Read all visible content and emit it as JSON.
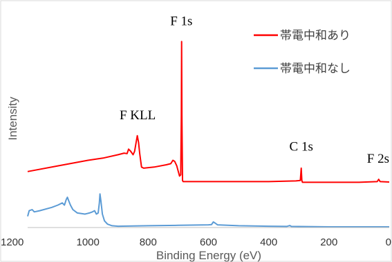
{
  "chart_data": {
    "type": "line",
    "xlabel": "Binding Energy (eV)",
    "ylabel": "Intensity",
    "xlim": [
      1200,
      0
    ],
    "x_reversed": true,
    "ylim": [
      0,
      100
    ],
    "x_ticks": [
      "1200",
      "1000",
      "800",
      "600",
      "400",
      "200",
      "0"
    ],
    "x_tick_values": [
      1200,
      1000,
      800,
      600,
      400,
      200,
      0
    ],
    "y_ticks_shown": false,
    "grid": false,
    "legend_position": "top-right",
    "series": [
      {
        "name": "帯電中和あり",
        "color": "#ff0000",
        "points": [
          [
            1200,
            25
          ],
          [
            1100,
            27.5
          ],
          [
            1000,
            30
          ],
          [
            950,
            31
          ],
          [
            900,
            32.5
          ],
          [
            880,
            33.2
          ],
          [
            870,
            33
          ],
          [
            865,
            35
          ],
          [
            858,
            34
          ],
          [
            850,
            32.5
          ],
          [
            845,
            34
          ],
          [
            840,
            38
          ],
          [
            836,
            41
          ],
          [
            832,
            38
          ],
          [
            828,
            33
          ],
          [
            822,
            27
          ],
          [
            815,
            26.5
          ],
          [
            780,
            27
          ],
          [
            740,
            28
          ],
          [
            725,
            28.5
          ],
          [
            718,
            30
          ],
          [
            712,
            29.5
          ],
          [
            705,
            27.5
          ],
          [
            700,
            25
          ],
          [
            696,
            23
          ],
          [
            692,
            23.5
          ],
          [
            690,
            50
          ],
          [
            689,
            83
          ],
          [
            688,
            50
          ],
          [
            686,
            21
          ],
          [
            684,
            20.5
          ],
          [
            600,
            20.5
          ],
          [
            400,
            20.5
          ],
          [
            310,
            20.8
          ],
          [
            295,
            21
          ],
          [
            292,
            26.5
          ],
          [
            290,
            21
          ],
          [
            288,
            20.2
          ],
          [
            200,
            20.2
          ],
          [
            100,
            20.2
          ],
          [
            40,
            20.5
          ],
          [
            35,
            21.5
          ],
          [
            30,
            20.5
          ],
          [
            0,
            20.3
          ]
        ]
      },
      {
        "name": "帯電中和なし",
        "color": "#5b9bd5",
        "points": [
          [
            1200,
            5
          ],
          [
            1195,
            7.5
          ],
          [
            1185,
            8
          ],
          [
            1178,
            7
          ],
          [
            1160,
            7.5
          ],
          [
            1120,
            9
          ],
          [
            1100,
            10
          ],
          [
            1085,
            11
          ],
          [
            1078,
            10
          ],
          [
            1072,
            12.5
          ],
          [
            1068,
            13.5
          ],
          [
            1064,
            12
          ],
          [
            1058,
            10
          ],
          [
            1050,
            8
          ],
          [
            1035,
            6.5
          ],
          [
            1010,
            6
          ],
          [
            995,
            6.5
          ],
          [
            985,
            7
          ],
          [
            978,
            7.5
          ],
          [
            972,
            6
          ],
          [
            966,
            6.5
          ],
          [
            962,
            11
          ],
          [
            960,
            15
          ],
          [
            957,
            12
          ],
          [
            952,
            6
          ],
          [
            945,
            3
          ],
          [
            935,
            1.5
          ],
          [
            920,
            0.8
          ],
          [
            900,
            0.6
          ],
          [
            800,
            0.8
          ],
          [
            700,
            1
          ],
          [
            600,
            1.2
          ],
          [
            590,
            1.3
          ],
          [
            584,
            2.5
          ],
          [
            578,
            2
          ],
          [
            570,
            1.2
          ],
          [
            500,
            0.8
          ],
          [
            400,
            0.6
          ],
          [
            340,
            0.5
          ],
          [
            330,
            0.9
          ],
          [
            325,
            0.5
          ],
          [
            200,
            0.3
          ],
          [
            0,
            0.3
          ]
        ]
      }
    ],
    "annotations": [
      {
        "text": "F 1s",
        "x": 690,
        "y": 83
      },
      {
        "text": "F KLL",
        "x": 835,
        "y": 41
      },
      {
        "text": "C 1s",
        "x": 292,
        "y": 27
      },
      {
        "text": "F 2s",
        "x": 35,
        "y": 21.5
      }
    ]
  }
}
